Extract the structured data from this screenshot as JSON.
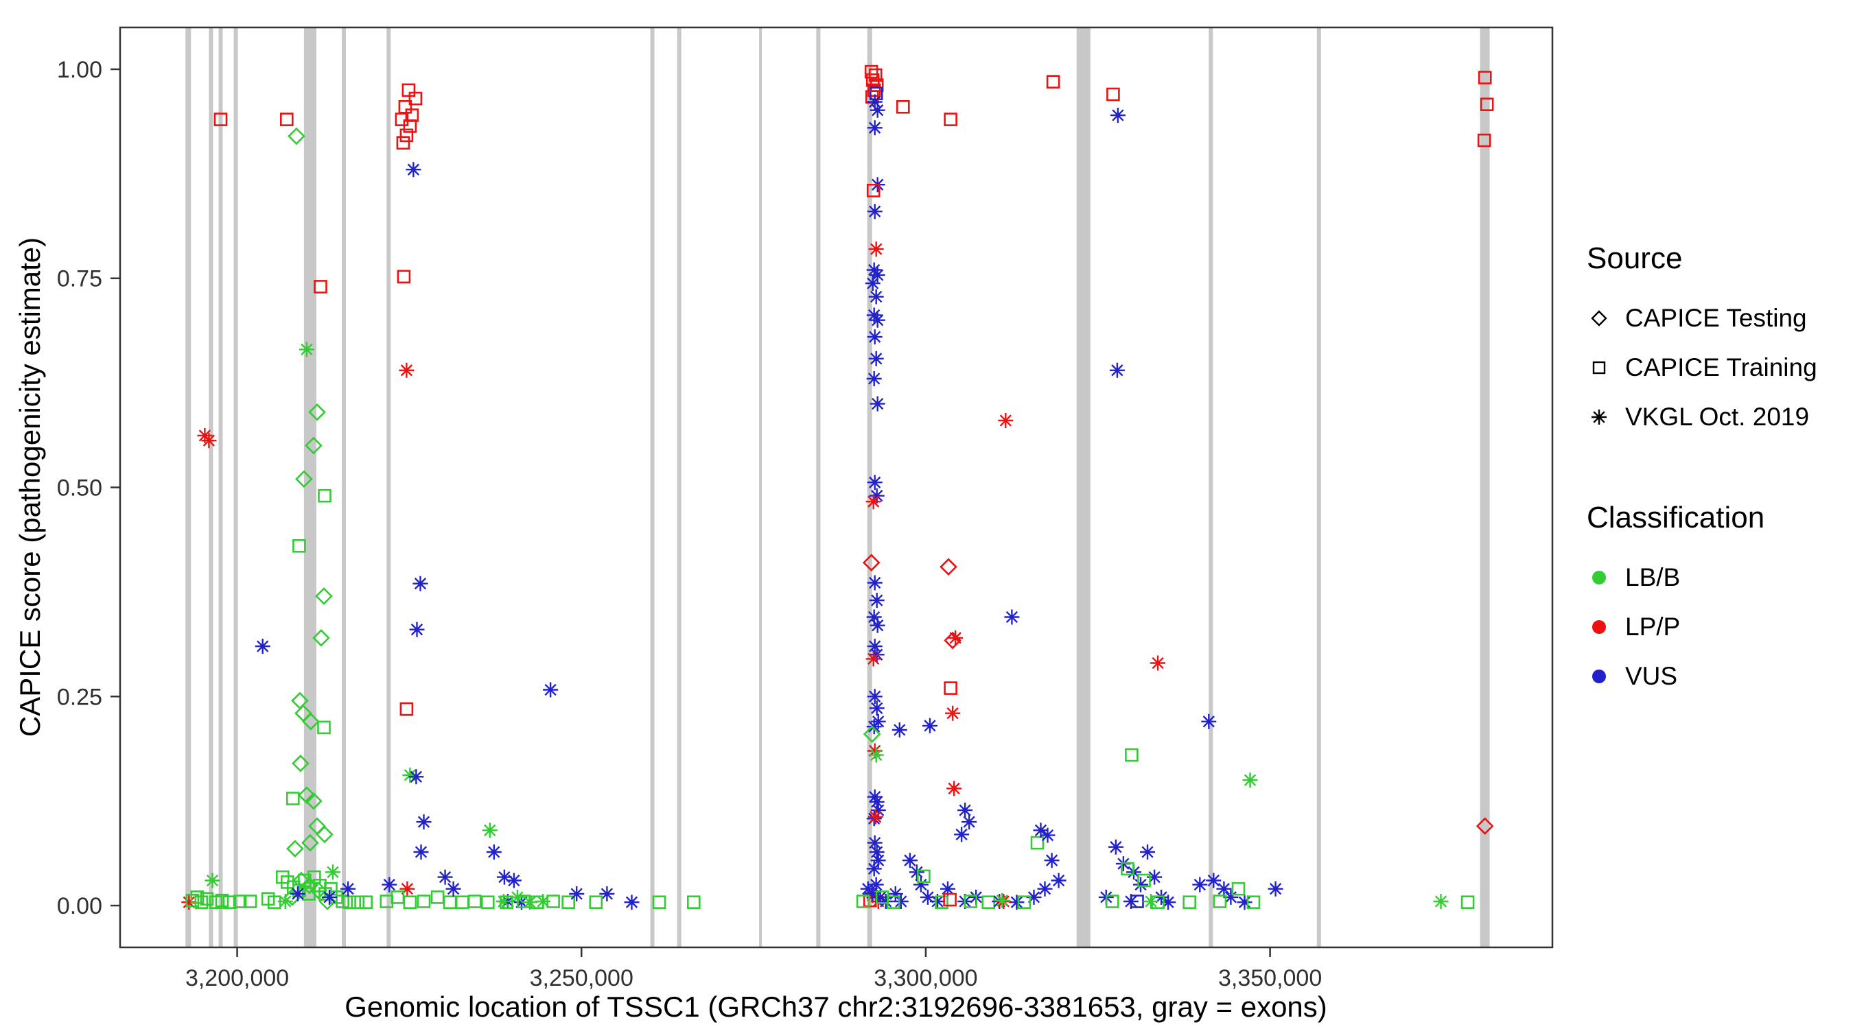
{
  "figure": {
    "background": "#ffffff"
  },
  "legend": {
    "source": {
      "title": "Source",
      "items": [
        {
          "label": "CAPICE Testing",
          "shape": "diamond"
        },
        {
          "label": "CAPICE Training",
          "shape": "square"
        },
        {
          "label": "VKGL Oct. 2019",
          "shape": "asterisk"
        }
      ]
    },
    "classification": {
      "title": "Classification",
      "items": [
        {
          "label": "LB/B",
          "color": "#33cc33"
        },
        {
          "label": "LP/P",
          "color": "#ee1111"
        },
        {
          "label": "VUS",
          "color": "#2222cc"
        }
      ]
    }
  },
  "chart_data": {
    "type": "scatter",
    "title": "",
    "xlabel": "Genomic location of TSSC1 (GRCh37 chr2:3192696-3381653, gray = exons)",
    "ylabel": "CAPICE score (pathogenicity estimate)",
    "x_domain": [
      3183000,
      3391000
    ],
    "y_domain": [
      -0.05,
      1.05
    ],
    "x_ticks": [
      {
        "value": 3200000,
        "label": "3,200,000"
      },
      {
        "value": 3250000,
        "label": "3,250,000"
      },
      {
        "value": 3300000,
        "label": "3,300,000"
      },
      {
        "value": 3350000,
        "label": "3,350,000"
      }
    ],
    "y_ticks": [
      {
        "value": 0.0,
        "label": "0.00"
      },
      {
        "value": 0.25,
        "label": "0.25"
      },
      {
        "value": 0.5,
        "label": "0.50"
      },
      {
        "value": 0.75,
        "label": "0.75"
      },
      {
        "value": 1.0,
        "label": "1.00"
      }
    ],
    "exon_color": "#c8c8c8",
    "exons": [
      [
        3192500,
        3193300
      ],
      [
        3195900,
        3196500
      ],
      [
        3197300,
        3197900
      ],
      [
        3199500,
        3200100
      ],
      [
        3209700,
        3211500
      ],
      [
        3215200,
        3215800
      ],
      [
        3221700,
        3222300
      ],
      [
        3260000,
        3260600
      ],
      [
        3263900,
        3264500
      ],
      [
        3275800,
        3276200
      ],
      [
        3284100,
        3284700
      ],
      [
        3291500,
        3292200
      ],
      [
        3321900,
        3323900
      ],
      [
        3341100,
        3341700
      ],
      [
        3356800,
        3357400
      ],
      [
        3380500,
        3381900
      ]
    ],
    "classification_colors": {
      "g": "#33cc33",
      "r": "#ee1111",
      "b": "#2222cc"
    },
    "classification_names": {
      "g": "LB/B",
      "r": "LP/P",
      "b": "VUS"
    },
    "source_shapes": {
      "d": "CAPICE Testing",
      "q": "CAPICE Training",
      "a": "VKGL Oct. 2019"
    },
    "points": [
      [
        3193000,
        0.004,
        "ra"
      ],
      [
        3193500,
        0.006,
        "gq"
      ],
      [
        3194200,
        0.01,
        "gq"
      ],
      [
        3194800,
        0.004,
        "gq"
      ],
      [
        3195600,
        0.008,
        "gq"
      ],
      [
        3196400,
        0.03,
        "ga"
      ],
      [
        3196900,
        0.004,
        "gq"
      ],
      [
        3197800,
        0.006,
        "gq"
      ],
      [
        3198900,
        0.004,
        "gq"
      ],
      [
        3200400,
        0.005,
        "gq"
      ],
      [
        3201900,
        0.005,
        "gq"
      ],
      [
        3195300,
        0.562,
        "ra"
      ],
      [
        3195900,
        0.556,
        "ra"
      ],
      [
        3197600,
        0.94,
        "rq"
      ],
      [
        3203700,
        0.31,
        "ba"
      ],
      [
        3204500,
        0.008,
        "gq"
      ],
      [
        3205400,
        0.004,
        "gq"
      ],
      [
        3207200,
        0.94,
        "rq"
      ],
      [
        3208600,
        0.92,
        "gd"
      ],
      [
        3210100,
        0.665,
        "ga"
      ],
      [
        3211600,
        0.59,
        "gd"
      ],
      [
        3211100,
        0.55,
        "gd"
      ],
      [
        3209700,
        0.51,
        "gd"
      ],
      [
        3212700,
        0.49,
        "gq"
      ],
      [
        3209000,
        0.43,
        "gq"
      ],
      [
        3212100,
        0.74,
        "rq"
      ],
      [
        3212600,
        0.37,
        "gd"
      ],
      [
        3212200,
        0.32,
        "gd"
      ],
      [
        3209100,
        0.245,
        "gd"
      ],
      [
        3209600,
        0.23,
        "gd"
      ],
      [
        3210700,
        0.22,
        "gd"
      ],
      [
        3212600,
        0.213,
        "gq"
      ],
      [
        3209200,
        0.17,
        "gd"
      ],
      [
        3210100,
        0.132,
        "gd"
      ],
      [
        3211100,
        0.125,
        "gd"
      ],
      [
        3208100,
        0.128,
        "gq"
      ],
      [
        3211600,
        0.095,
        "gd"
      ],
      [
        3212700,
        0.085,
        "gd"
      ],
      [
        3210600,
        0.075,
        "gd"
      ],
      [
        3208400,
        0.068,
        "gd"
      ],
      [
        3206600,
        0.034,
        "gq"
      ],
      [
        3207300,
        0.028,
        "gq"
      ],
      [
        3208200,
        0.022,
        "gq"
      ],
      [
        3209000,
        0.018,
        "gq"
      ],
      [
        3209800,
        0.03,
        "gq"
      ],
      [
        3210400,
        0.014,
        "gq"
      ],
      [
        3211200,
        0.034,
        "gq"
      ],
      [
        3212000,
        0.024,
        "gq"
      ],
      [
        3212800,
        0.014,
        "gq"
      ],
      [
        3213600,
        0.02,
        "gq"
      ],
      [
        3214400,
        0.01,
        "gq"
      ],
      [
        3215300,
        0.005,
        "gq"
      ],
      [
        3216300,
        0.004,
        "gq"
      ],
      [
        3217500,
        0.004,
        "gq"
      ],
      [
        3218700,
        0.004,
        "gq"
      ],
      [
        3209300,
        0.03,
        "gd"
      ],
      [
        3210500,
        0.024,
        "gd"
      ],
      [
        3211800,
        0.018,
        "gd"
      ],
      [
        3208000,
        0.01,
        "gd"
      ],
      [
        3213100,
        0.005,
        "gd"
      ],
      [
        3207000,
        0.005,
        "ga"
      ],
      [
        3213900,
        0.04,
        "ga"
      ],
      [
        3208800,
        0.014,
        "ba"
      ],
      [
        3213400,
        0.01,
        "ba"
      ],
      [
        3216100,
        0.02,
        "ba"
      ],
      [
        3224900,
        0.975,
        "rq"
      ],
      [
        3225900,
        0.965,
        "rq"
      ],
      [
        3224400,
        0.955,
        "rq"
      ],
      [
        3225400,
        0.945,
        "rq"
      ],
      [
        3223900,
        0.94,
        "rq"
      ],
      [
        3225100,
        0.932,
        "rq"
      ],
      [
        3224600,
        0.921,
        "rq"
      ],
      [
        3224100,
        0.912,
        "rq"
      ],
      [
        3225600,
        0.88,
        "ba"
      ],
      [
        3224200,
        0.752,
        "rq"
      ],
      [
        3224600,
        0.64,
        "ra"
      ],
      [
        3226600,
        0.385,
        "ba"
      ],
      [
        3226100,
        0.33,
        "ba"
      ],
      [
        3224600,
        0.235,
        "rq"
      ],
      [
        3225100,
        0.156,
        "ga"
      ],
      [
        3226000,
        0.154,
        "ba"
      ],
      [
        3227100,
        0.1,
        "ba"
      ],
      [
        3226700,
        0.064,
        "ba"
      ],
      [
        3224700,
        0.02,
        "ra"
      ],
      [
        3221700,
        0.005,
        "gq"
      ],
      [
        3223300,
        0.01,
        "gq"
      ],
      [
        3225100,
        0.004,
        "gq"
      ],
      [
        3227100,
        0.005,
        "gq"
      ],
      [
        3229100,
        0.01,
        "gq"
      ],
      [
        3230900,
        0.004,
        "gq"
      ],
      [
        3222100,
        0.025,
        "ba"
      ],
      [
        3230200,
        0.034,
        "ba"
      ],
      [
        3231400,
        0.02,
        "ba"
      ],
      [
        3232700,
        0.004,
        "gq"
      ],
      [
        3234500,
        0.005,
        "gq"
      ],
      [
        3236400,
        0.004,
        "gq"
      ],
      [
        3236700,
        0.09,
        "ga"
      ],
      [
        3237300,
        0.064,
        "ba"
      ],
      [
        3238800,
        0.034,
        "ba"
      ],
      [
        3240200,
        0.03,
        "ba"
      ],
      [
        3239300,
        0.005,
        "ba"
      ],
      [
        3241300,
        0.004,
        "ba"
      ],
      [
        3238700,
        0.005,
        "ga"
      ],
      [
        3240700,
        0.01,
        "ga"
      ],
      [
        3242500,
        0.004,
        "ga"
      ],
      [
        3244400,
        0.005,
        "ga"
      ],
      [
        3239100,
        0.004,
        "gq"
      ],
      [
        3241600,
        0.005,
        "gq"
      ],
      [
        3243600,
        0.004,
        "gq"
      ],
      [
        3245900,
        0.005,
        "gq"
      ],
      [
        3248100,
        0.004,
        "gq"
      ],
      [
        3245500,
        0.258,
        "ba"
      ],
      [
        3249300,
        0.014,
        "ba"
      ],
      [
        3253700,
        0.014,
        "ba"
      ],
      [
        3257300,
        0.004,
        "ba"
      ],
      [
        3252100,
        0.004,
        "gq"
      ],
      [
        3261300,
        0.004,
        "gq"
      ],
      [
        3266300,
        0.004,
        "gq"
      ],
      [
        3292100,
        0.997,
        "rq"
      ],
      [
        3292700,
        0.993,
        "rq"
      ],
      [
        3292300,
        0.987,
        "rq"
      ],
      [
        3292900,
        0.981,
        "rq"
      ],
      [
        3292500,
        0.975,
        "rq"
      ],
      [
        3292800,
        0.971,
        "bq"
      ],
      [
        3292200,
        0.967,
        "rq"
      ],
      [
        3292600,
        0.961,
        "ba"
      ],
      [
        3293000,
        0.951,
        "ba"
      ],
      [
        3296700,
        0.955,
        "rq"
      ],
      [
        3292600,
        0.93,
        "ba"
      ],
      [
        3293000,
        0.862,
        "ba"
      ],
      [
        3292400,
        0.855,
        "rq"
      ],
      [
        3292600,
        0.83,
        "ba"
      ],
      [
        3292800,
        0.785,
        "ra"
      ],
      [
        3292500,
        0.76,
        "ba"
      ],
      [
        3293000,
        0.754,
        "ba"
      ],
      [
        3292300,
        0.744,
        "ba"
      ],
      [
        3292800,
        0.728,
        "ba"
      ],
      [
        3292500,
        0.706,
        "ba"
      ],
      [
        3293000,
        0.7,
        "ba"
      ],
      [
        3292600,
        0.68,
        "ba"
      ],
      [
        3292800,
        0.654,
        "ba"
      ],
      [
        3292500,
        0.63,
        "ba"
      ],
      [
        3293000,
        0.6,
        "ba"
      ],
      [
        3292600,
        0.506,
        "ba"
      ],
      [
        3292900,
        0.49,
        "ba"
      ],
      [
        3292400,
        0.483,
        "ra"
      ],
      [
        3292100,
        0.41,
        "rd"
      ],
      [
        3292600,
        0.386,
        "ba"
      ],
      [
        3292900,
        0.365,
        "ba"
      ],
      [
        3292500,
        0.345,
        "ba"
      ],
      [
        3293000,
        0.335,
        "ba"
      ],
      [
        3292600,
        0.31,
        "ba"
      ],
      [
        3292900,
        0.3,
        "ba"
      ],
      [
        3292400,
        0.295,
        "ra"
      ],
      [
        3292600,
        0.25,
        "ba"
      ],
      [
        3292900,
        0.236,
        "ba"
      ],
      [
        3293100,
        0.22,
        "ba"
      ],
      [
        3292500,
        0.214,
        "ba"
      ],
      [
        3292200,
        0.205,
        "gd"
      ],
      [
        3292600,
        0.185,
        "ra"
      ],
      [
        3292800,
        0.18,
        "ga"
      ],
      [
        3292600,
        0.13,
        "ba"
      ],
      [
        3292900,
        0.124,
        "ba"
      ],
      [
        3293100,
        0.114,
        "ba"
      ],
      [
        3292500,
        0.104,
        "ba"
      ],
      [
        3292700,
        0.106,
        "ra"
      ],
      [
        3292600,
        0.075,
        "ba"
      ],
      [
        3292900,
        0.064,
        "ba"
      ],
      [
        3293100,
        0.054,
        "ba"
      ],
      [
        3292500,
        0.044,
        "ba"
      ],
      [
        3291900,
        0.006,
        "rq"
      ],
      [
        3292300,
        0.012,
        "ra"
      ],
      [
        3293100,
        0.005,
        "ra"
      ],
      [
        3291600,
        0.02,
        "ba"
      ],
      [
        3292200,
        0.015,
        "ba"
      ],
      [
        3292800,
        0.025,
        "ba"
      ],
      [
        3293400,
        0.01,
        "ba"
      ],
      [
        3294200,
        0.005,
        "ba"
      ],
      [
        3295600,
        0.014,
        "ba"
      ],
      [
        3296400,
        0.005,
        "ba"
      ],
      [
        3290900,
        0.005,
        "gq"
      ],
      [
        3293700,
        0.01,
        "gq"
      ],
      [
        3295300,
        0.004,
        "gq"
      ],
      [
        3296200,
        0.21,
        "ba"
      ],
      [
        3297700,
        0.054,
        "ba"
      ],
      [
        3298700,
        0.04,
        "ba"
      ],
      [
        3299300,
        0.025,
        "ba"
      ],
      [
        3300300,
        0.01,
        "ba"
      ],
      [
        3301700,
        0.005,
        "ba"
      ],
      [
        3303200,
        0.02,
        "ba"
      ],
      [
        3305700,
        0.005,
        "ba"
      ],
      [
        3307300,
        0.01,
        "ba"
      ],
      [
        3299700,
        0.035,
        "gq"
      ],
      [
        3302300,
        0.004,
        "gq"
      ],
      [
        3306500,
        0.005,
        "gq"
      ],
      [
        3309100,
        0.004,
        "gq"
      ],
      [
        3300600,
        0.215,
        "ba"
      ],
      [
        3303600,
        0.94,
        "rq"
      ],
      [
        3303300,
        0.405,
        "rd"
      ],
      [
        3304300,
        0.32,
        "ra"
      ],
      [
        3303900,
        0.317,
        "rd"
      ],
      [
        3303600,
        0.26,
        "rq"
      ],
      [
        3303900,
        0.23,
        "ra"
      ],
      [
        3304100,
        0.14,
        "ra"
      ],
      [
        3305700,
        0.114,
        "ba"
      ],
      [
        3306300,
        0.1,
        "ba"
      ],
      [
        3305200,
        0.085,
        "ba"
      ],
      [
        3303500,
        0.007,
        "rq"
      ],
      [
        3311600,
        0.58,
        "ra"
      ],
      [
        3312500,
        0.345,
        "ba"
      ],
      [
        3316200,
        0.075,
        "gq"
      ],
      [
        3316700,
        0.09,
        "ba"
      ],
      [
        3317700,
        0.084,
        "ba"
      ],
      [
        3318300,
        0.054,
        "ba"
      ],
      [
        3319300,
        0.03,
        "ba"
      ],
      [
        3317300,
        0.02,
        "ba"
      ],
      [
        3315700,
        0.01,
        "ba"
      ],
      [
        3310700,
        0.005,
        "ba"
      ],
      [
        3313200,
        0.004,
        "ba"
      ],
      [
        3311300,
        0.005,
        "ra"
      ],
      [
        3311100,
        0.006,
        "ga"
      ],
      [
        3314300,
        0.004,
        "gq"
      ],
      [
        3318500,
        0.985,
        "rq"
      ],
      [
        3327200,
        0.97,
        "rq"
      ],
      [
        3327900,
        0.945,
        "ba"
      ],
      [
        3327800,
        0.64,
        "ba"
      ],
      [
        3333700,
        0.29,
        "ra"
      ],
      [
        3329900,
        0.18,
        "gq"
      ],
      [
        3327600,
        0.07,
        "ba"
      ],
      [
        3328700,
        0.05,
        "ba"
      ],
      [
        3330200,
        0.04,
        "ba"
      ],
      [
        3331200,
        0.025,
        "ba"
      ],
      [
        3332200,
        0.064,
        "ba"
      ],
      [
        3333200,
        0.034,
        "ba"
      ],
      [
        3326200,
        0.01,
        "ba"
      ],
      [
        3329800,
        0.005,
        "ba"
      ],
      [
        3334200,
        0.01,
        "ba"
      ],
      [
        3335200,
        0.004,
        "ba"
      ],
      [
        3327100,
        0.005,
        "gq"
      ],
      [
        3329300,
        0.044,
        "gq"
      ],
      [
        3331700,
        0.03,
        "gq"
      ],
      [
        3333700,
        0.004,
        "gq"
      ],
      [
        3330700,
        0.005,
        "bq"
      ],
      [
        3332700,
        0.005,
        "ga"
      ],
      [
        3341100,
        0.22,
        "ba"
      ],
      [
        3339800,
        0.025,
        "ba"
      ],
      [
        3341800,
        0.03,
        "ba"
      ],
      [
        3343300,
        0.02,
        "ba"
      ],
      [
        3344300,
        0.01,
        "ba"
      ],
      [
        3346300,
        0.004,
        "ba"
      ],
      [
        3350800,
        0.02,
        "ba"
      ],
      [
        3338300,
        0.004,
        "gq"
      ],
      [
        3342700,
        0.005,
        "gq"
      ],
      [
        3345400,
        0.02,
        "gq"
      ],
      [
        3347600,
        0.004,
        "gq"
      ],
      [
        3347100,
        0.15,
        "ga"
      ],
      [
        3374800,
        0.005,
        "ga"
      ],
      [
        3378700,
        0.004,
        "gq"
      ],
      [
        3381200,
        0.99,
        "rq"
      ],
      [
        3381500,
        0.958,
        "rq"
      ],
      [
        3381100,
        0.915,
        "rq"
      ],
      [
        3381200,
        0.095,
        "rd"
      ]
    ]
  }
}
